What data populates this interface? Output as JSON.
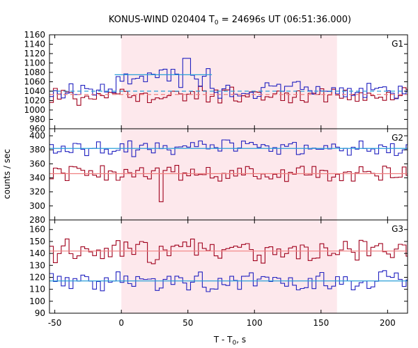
{
  "chart_data": {
    "type": "line",
    "title_prefix": "KONUS-WIND 020404 T",
    "title_sub": "0",
    "title_suffix": " = 24696s UT (06:51:36.000)",
    "xlabel_prefix": "T - T",
    "xlabel_sub": "0",
    "xlabel_suffix": ", s",
    "ylabel": "counts / sec",
    "xlim": [
      -54,
      215
    ],
    "xticks": [
      -50,
      0,
      50,
      100,
      150,
      200
    ],
    "shaded_interval": [
      0,
      162
    ],
    "colors": {
      "shade": "#fde8ec",
      "red_series": "#a0001c",
      "blue_series": "#2020c0",
      "red_fit": "#f08080",
      "blue_fit": "#2aa0d8"
    },
    "bin_width": 2.944,
    "panels": [
      {
        "label": "G1",
        "ylim": [
          960,
          1160
        ],
        "yticks": [
          960,
          980,
          1000,
          1020,
          1040,
          1060,
          1080,
          1100,
          1120,
          1140,
          1160
        ],
        "red_mean": 1033,
        "blue_mean": 1040,
        "blue_fit_segment": {
          "x": [
            -5,
            68
          ],
          "y": 1075
        },
        "red_amplitude": 14,
        "blue_amplitude": 16,
        "blue_spikes": [
          [
            50,
            1131
          ],
          [
            49,
            1110
          ]
        ],
        "red_dips": [
          [
            -33,
            1010
          ],
          [
            75,
            1015
          ]
        ]
      },
      {
        "label": "G2",
        "ylim": [
          280,
          410
        ],
        "yticks": [
          280,
          300,
          320,
          340,
          360,
          380,
          400
        ],
        "red_mean": 346,
        "blue_mean": 382,
        "red_amplitude": 10,
        "blue_amplitude": 10,
        "blue_spikes": [],
        "red_dips": [
          [
            31,
            306
          ]
        ]
      },
      {
        "label": "G3",
        "ylim": [
          90,
          168
        ],
        "yticks": [
          90,
          100,
          110,
          120,
          130,
          140,
          150,
          160
        ],
        "red_mean": 142,
        "blue_mean": 117,
        "red_amplitude": 8,
        "blue_amplitude": 7,
        "blue_spikes": [],
        "red_dips": []
      }
    ]
  }
}
